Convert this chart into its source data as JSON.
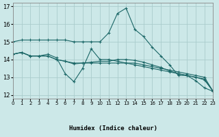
{
  "bg_color": "#cce8e8",
  "grid_color": "#aacccc",
  "line_color": "#1a6666",
  "xlabel": "Humidex (Indice chaleur)",
  "xlim": [
    0,
    23
  ],
  "ylim": [
    11.8,
    17.2
  ],
  "yticks": [
    12,
    13,
    14,
    15,
    16,
    17
  ],
  "xtick_labels": [
    "0",
    "1",
    "2",
    "3",
    "4",
    "5",
    "6",
    "7",
    "8",
    "9",
    "10",
    "11",
    "12",
    "13",
    "14",
    "15",
    "16",
    "17",
    "18",
    "19",
    "20",
    "21",
    "22",
    "23"
  ],
  "series": [
    [
      15.0,
      15.1,
      15.1,
      15.1,
      15.1,
      15.1,
      15.1,
      15.0,
      15.0,
      15.0,
      15.0,
      15.5,
      16.6,
      16.9,
      15.7,
      15.3,
      14.7,
      14.2,
      13.7,
      13.1,
      13.1,
      12.8,
      12.4,
      12.2
    ],
    [
      14.3,
      14.4,
      14.2,
      14.2,
      14.3,
      14.1,
      13.2,
      12.75,
      13.5,
      14.6,
      14.0,
      14.0,
      13.9,
      13.8,
      13.7,
      13.6,
      13.5,
      13.4,
      13.3,
      13.2,
      13.1,
      13.0,
      12.9,
      12.2
    ],
    [
      14.3,
      14.4,
      14.2,
      14.2,
      14.2,
      14.0,
      13.9,
      13.8,
      13.8,
      13.8,
      13.8,
      13.8,
      13.8,
      13.8,
      13.8,
      13.7,
      13.6,
      13.5,
      13.4,
      13.3,
      13.2,
      13.1,
      13.0,
      12.2
    ],
    [
      14.3,
      14.4,
      14.2,
      14.2,
      14.2,
      14.0,
      13.9,
      13.75,
      13.8,
      13.85,
      13.9,
      13.9,
      14.0,
      14.0,
      13.95,
      13.85,
      13.7,
      13.55,
      13.35,
      13.2,
      13.1,
      13.0,
      12.85,
      12.2
    ]
  ]
}
